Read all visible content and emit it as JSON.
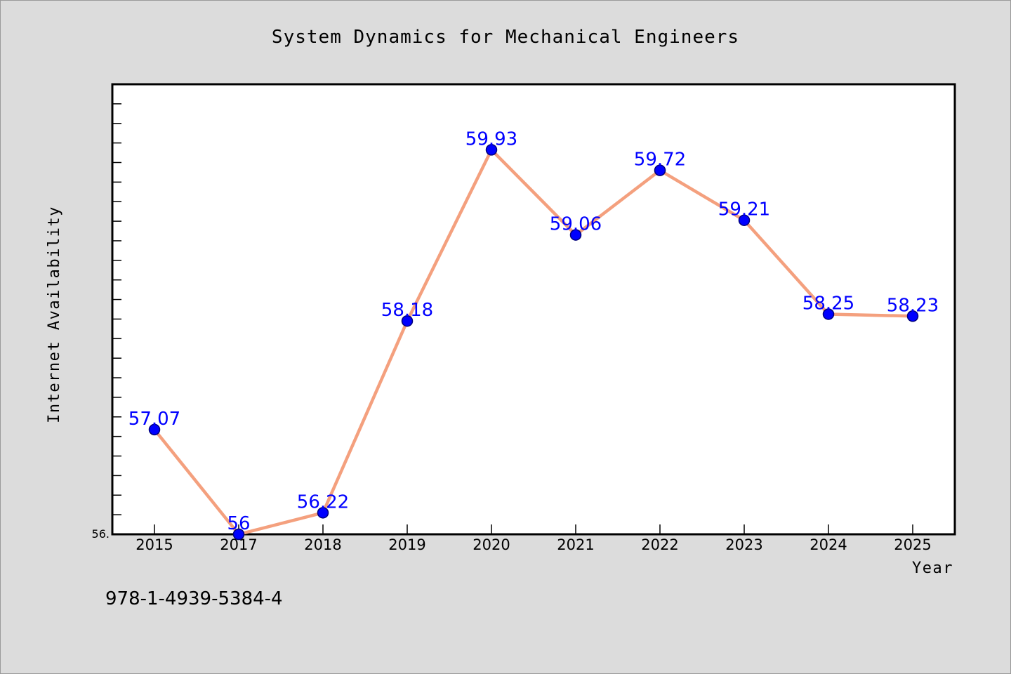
{
  "chart_data": {
    "type": "line",
    "title": "System Dynamics for Mechanical Engineers",
    "xlabel": "Year",
    "ylabel": "Internet Availability",
    "categories": [
      "2015",
      "2017",
      "2018",
      "2019",
      "2020",
      "2021",
      "2022",
      "2023",
      "2024",
      "2025"
    ],
    "values": [
      57.07,
      56,
      56.22,
      58.18,
      59.93,
      59.06,
      59.72,
      59.21,
      58.25,
      58.23
    ],
    "data_labels": [
      "57.07",
      "56",
      "56.22",
      "58.18",
      "59.93",
      "59.06",
      "59.72",
      "59.21",
      "58.25",
      "58.23"
    ],
    "ylim": [
      56,
      60.6
    ],
    "y_min_tick_label": "56.",
    "grid": false,
    "line_color": "#f4a07e",
    "marker_color": "#0000ff",
    "label_color": "#0000ff"
  },
  "footer": {
    "isbn": "978-1-4939-5384-4"
  }
}
